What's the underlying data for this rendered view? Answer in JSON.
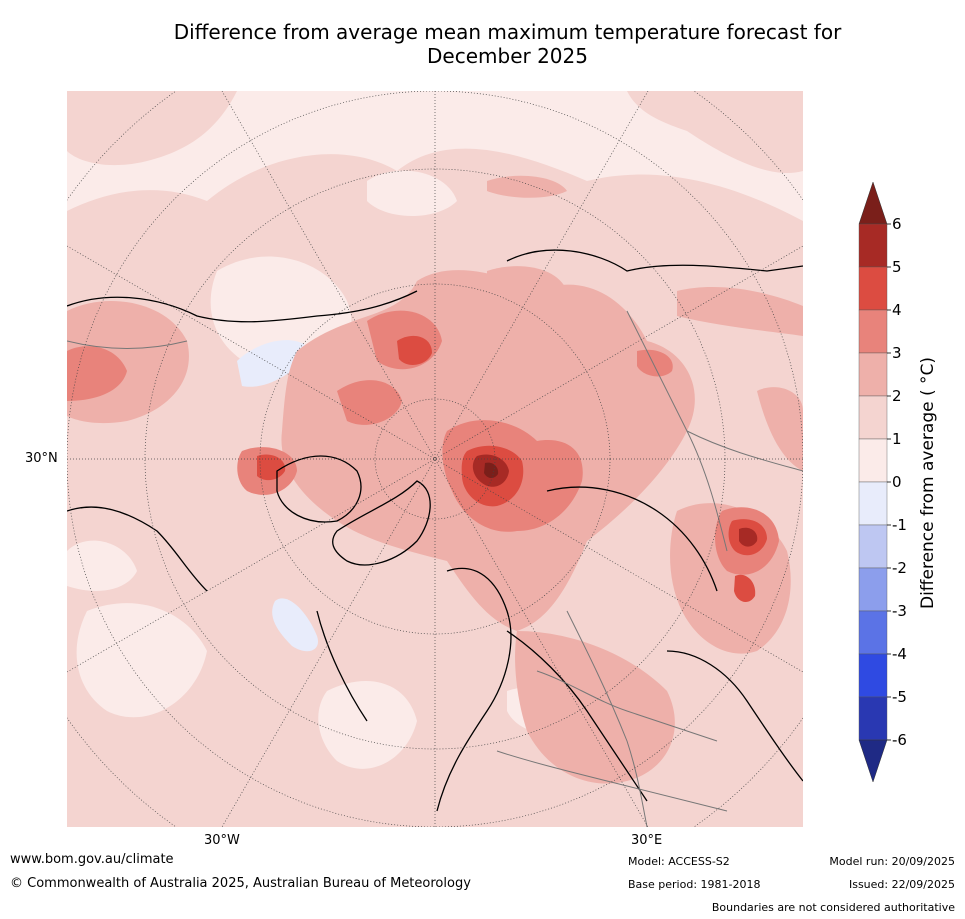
{
  "title": {
    "line1": "Difference from average mean maximum temperature forecast for",
    "line2": "December 2025"
  },
  "map": {
    "projection": "north-polar-stereographic",
    "latitude_labels": [
      "30°N"
    ],
    "longitude_labels": [
      "30°W",
      "30°E"
    ],
    "shading_color_forecast": "#f4d2cd"
  },
  "colorbar": {
    "label": "Difference from average ( °C)",
    "ticks": [
      "6",
      "5",
      "4",
      "3",
      "2",
      "1",
      "0",
      "-1",
      "-2",
      "-3",
      "-4",
      "-5",
      "-6"
    ],
    "bins": [
      {
        "range": [
          5,
          6
        ],
        "color": "#a72a25"
      },
      {
        "range": [
          4,
          5
        ],
        "color": "#dc4c41"
      },
      {
        "range": [
          3,
          4
        ],
        "color": "#e8837b"
      },
      {
        "range": [
          2,
          3
        ],
        "color": "#eeb0aa"
      },
      {
        "range": [
          1,
          2
        ],
        "color": "#f4d4d0"
      },
      {
        "range": [
          0,
          1
        ],
        "color": "#fbebe9"
      },
      {
        "range": [
          -1,
          0
        ],
        "color": "#e8ecfb"
      },
      {
        "range": [
          -2,
          -1
        ],
        "color": "#bec7f2"
      },
      {
        "range": [
          -3,
          -2
        ],
        "color": "#8c9eec"
      },
      {
        "range": [
          -4,
          -3
        ],
        "color": "#5b73e6"
      },
      {
        "range": [
          -5,
          -4
        ],
        "color": "#2f4ae2"
      },
      {
        "range": [
          -6,
          -5
        ],
        "color": "#2938b2"
      }
    ],
    "extend_high_color": "#7a1f1a",
    "extend_low_color": "#1f2a85"
  },
  "footer": {
    "website": "www.bom.gov.au/climate",
    "copyright": "© Commonwealth of Australia 2025, Australian Bureau of Meteorology",
    "model": "Model: ACCESS-S2",
    "base_period": "Base period: 1981-2018",
    "model_run": "Model run: 20/09/2025",
    "issued": "Issued: 22/09/2025",
    "disclaimer": "Boundaries are not considered authoritative"
  }
}
